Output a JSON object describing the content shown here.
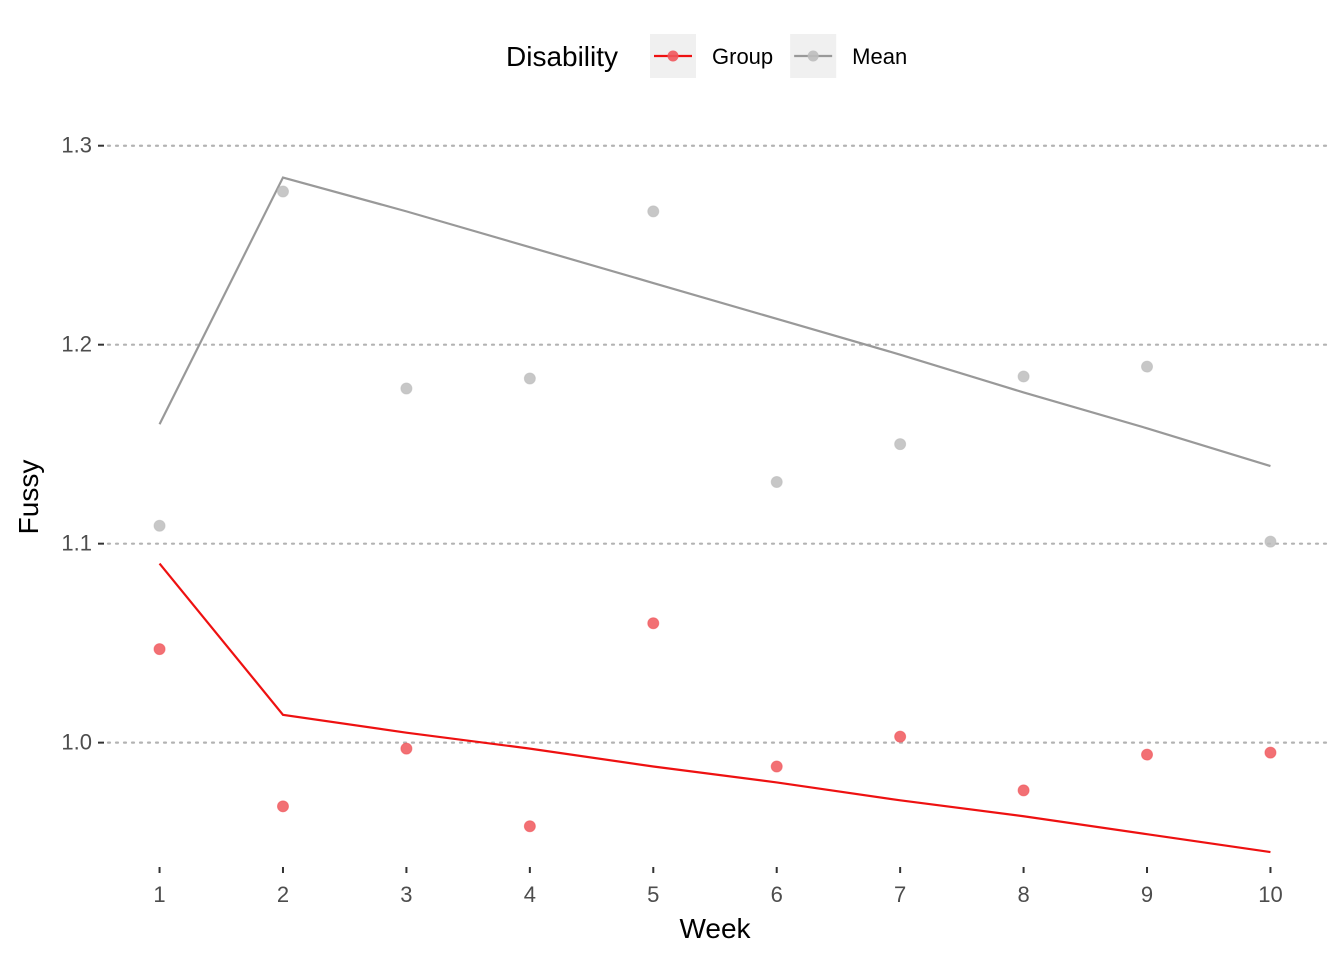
{
  "chart_data": {
    "type": "line",
    "title": "",
    "xlabel": "Week",
    "ylabel": "Fussy",
    "x": [
      1,
      2,
      3,
      4,
      5,
      6,
      7,
      8,
      9,
      10
    ],
    "x_ticks": [
      "1",
      "2",
      "3",
      "4",
      "5",
      "6",
      "7",
      "8",
      "9",
      "10"
    ],
    "y_ticks": [
      "1.0",
      "1.1",
      "1.2",
      "1.3"
    ],
    "y_tick_values": [
      1.0,
      1.1,
      1.2,
      1.3
    ],
    "xlim": [
      0.55,
      10.45
    ],
    "ylim": [
      0.937,
      1.328
    ],
    "grid": "horizontal dotted",
    "legend": {
      "title": "Disability",
      "position": "top"
    },
    "series": [
      {
        "name": "Group",
        "color": "#ee1111",
        "point_color": "#f0575c",
        "points": [
          1.047,
          0.968,
          0.997,
          0.958,
          1.06,
          0.988,
          1.003,
          0.976,
          0.994,
          0.995
        ],
        "line": [
          1.09,
          1.014,
          1.005,
          0.997,
          0.988,
          0.98,
          0.971,
          0.963,
          0.954,
          0.945
        ]
      },
      {
        "name": "Mean",
        "color": "#999999",
        "point_color": "#bdbdbd",
        "points": [
          1.109,
          1.277,
          1.178,
          1.183,
          1.267,
          1.131,
          1.15,
          1.184,
          1.189,
          1.101
        ],
        "line": [
          1.16,
          1.284,
          1.267,
          1.249,
          1.231,
          1.213,
          1.195,
          1.176,
          1.158,
          1.139
        ]
      }
    ]
  }
}
